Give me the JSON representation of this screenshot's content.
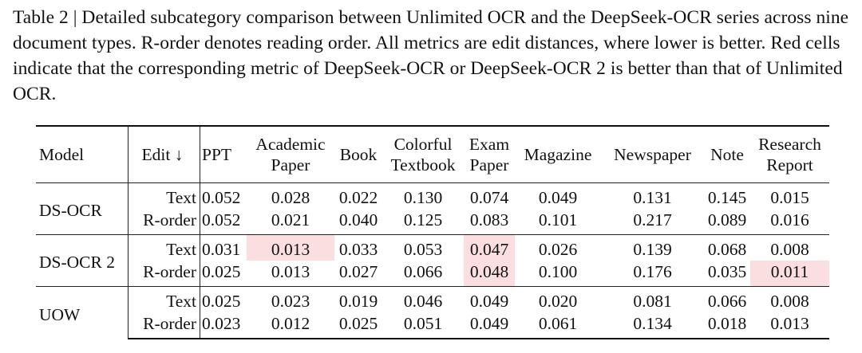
{
  "caption": "Table 2 | Detailed subcategory comparison between Unlimited OCR and the DeepSeek-OCR series across nine document types. R-order denotes reading order. All metrics are edit distances, where lower is better. Red cells indicate that the corresponding metric of DeepSeek-OCR or DeepSeek-OCR 2 is better than that of Unlimited OCR.",
  "table": {
    "headers": {
      "model": "Model",
      "edit": "Edit ↓",
      "ppt": "PPT",
      "academic_1": "Academic",
      "academic_2": "Paper",
      "book": "Book",
      "colorful_1": "Colorful",
      "colorful_2": "Textbook",
      "exam_1": "Exam",
      "exam_2": "Paper",
      "magazine": "Magazine",
      "newspaper": "Newspaper",
      "note": "Note",
      "research_1": "Research",
      "research_2": "Report"
    },
    "highlight_color": "#fbdfe0",
    "groups": [
      {
        "model": "DS-OCR",
        "rows": [
          {
            "edit": "Text",
            "values": [
              "0.052",
              "0.028",
              "0.022",
              "0.130",
              "0.074",
              "0.049",
              "0.131",
              "0.145",
              "0.015"
            ]
          },
          {
            "edit": "R-order",
            "values": [
              "0.052",
              "0.021",
              "0.040",
              "0.125",
              "0.083",
              "0.101",
              "0.217",
              "0.089",
              "0.016"
            ]
          }
        ]
      },
      {
        "model": "DS-OCR 2",
        "rows": [
          {
            "edit": "Text",
            "values": [
              "0.031",
              "0.013",
              "0.033",
              "0.053",
              "0.047",
              "0.026",
              "0.139",
              "0.068",
              "0.008"
            ]
          },
          {
            "edit": "R-order",
            "values": [
              "0.025",
              "0.013",
              "0.027",
              "0.066",
              "0.048",
              "0.100",
              "0.176",
              "0.035",
              "0.011"
            ]
          }
        ]
      },
      {
        "model": "UOW",
        "rows": [
          {
            "edit": "Text",
            "values": [
              "0.025",
              "0.023",
              "0.019",
              "0.046",
              "0.049",
              "0.020",
              "0.081",
              "0.066",
              "0.008"
            ]
          },
          {
            "edit": "R-order",
            "values": [
              "0.023",
              "0.012",
              "0.025",
              "0.051",
              "0.049",
              "0.061",
              "0.134",
              "0.018",
              "0.013"
            ]
          }
        ]
      }
    ]
  }
}
